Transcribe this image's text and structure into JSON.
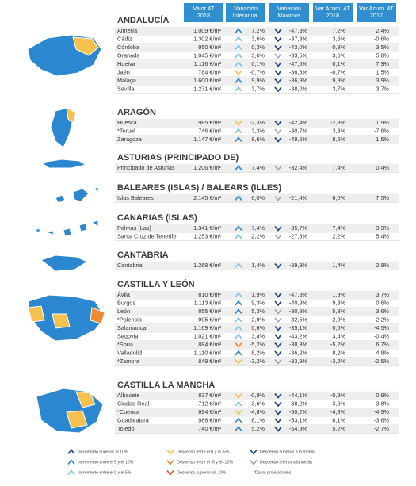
{
  "header": {
    "columns": [
      "Valor 4T 2018",
      "Variación Interanual",
      "Variación Máximos",
      "Var.Acum. 4T 2018",
      "Var.Acum. 4T 2017"
    ]
  },
  "sections": [
    {
      "title": "ANDALUCÍA",
      "rows": [
        [
          "Almería",
          "1.009 €/m²",
          "7,2%",
          "-47,3%",
          "7,2%",
          "2,4%"
        ],
        [
          "Cádiz",
          "1.302 €/m²",
          "3,6%",
          "-37,3%",
          "3,6%",
          "-0,6%"
        ],
        [
          "Córdoba",
          "950 €/m²",
          "0,3%",
          "-43,0%",
          "0,3%",
          "3,5%"
        ],
        [
          "Granada",
          "1.045 €/m²",
          "3,6%",
          "-33,5%",
          "3,6%",
          "5,8%"
        ],
        [
          "Huelva",
          "1.116 €/m²",
          "0,1%",
          "-47,5%",
          "0,1%",
          "7,9%"
        ],
        [
          "Jaén",
          "784 €/m²",
          "-0,7%",
          "-36,8%",
          "-0,7%",
          "1,5%"
        ],
        [
          "Málaga",
          "1.600 €/m²",
          "9,9%",
          "-36,9%",
          "9,9%",
          "3,9%"
        ],
        [
          "Sevilla",
          "1.271 €/m²",
          "3,7%",
          "-38,0%",
          "3,7%",
          "3,7%"
        ]
      ]
    },
    {
      "title": "ARAGÓN",
      "rows": [
        [
          "Huesca",
          "985 €/m²",
          "-2,3%",
          "-42,4%",
          "-2,3%",
          "1,9%"
        ],
        [
          "*Teruel",
          "746 €/m²",
          "3,3%",
          "-30,7%",
          "3,3%",
          "-7,6%"
        ],
        [
          "Zaragoza",
          "1.147 €/m²",
          "8,6%",
          "-49,5%",
          "8,6%",
          "1,5%"
        ]
      ]
    },
    {
      "title": "ASTURIAS (PRINCIPADO DE)",
      "rows": [
        [
          "Principado de Asturias",
          "1.206 €/m²",
          "7,4%",
          "-32,4%",
          "7,4%",
          "0,4%"
        ]
      ]
    },
    {
      "title": "BALEARES (ISLAS) / BALEARS (ILLES)",
      "rows": [
        [
          "Islas Baleares",
          "2.145 €/m²",
          "6,0%",
          "-21,4%",
          "6,0%",
          "7,5%"
        ]
      ]
    },
    {
      "title": "CANARIAS (ISLAS)",
      "rows": [
        [
          "Palmas (Las)",
          "1.341 €/m²",
          "7,4%",
          "-35,7%",
          "7,4%",
          "3,9%"
        ],
        [
          "Santa Cruz de Tenerife",
          "1.253 €/m²",
          "2,2%",
          "-27,8%",
          "2,2%",
          "5,4%"
        ]
      ]
    },
    {
      "title": "CANTABRIA",
      "rows": [
        [
          "Cantabria",
          "1.268 €/m²",
          "1,4%",
          "-39,3%",
          "1,4%",
          "2,8%"
        ]
      ]
    },
    {
      "title": "CASTILLA Y LEÓN",
      "rows": [
        [
          "Ávila",
          "810 €/m²",
          "1,9%",
          "-47,3%",
          "1,9%",
          "3,7%"
        ],
        [
          "Burgos",
          "1.113 €/m²",
          "9,3%",
          "-40,9%",
          "9,3%",
          "0,6%"
        ],
        [
          "León",
          "855 €/m²",
          "5,3%",
          "-30,8%",
          "5,3%",
          "3,6%"
        ],
        [
          "*Palencia",
          "995 €/m²",
          "2,9%",
          "-32,5%",
          "2,9%",
          "-2,2%"
        ],
        [
          "Salamanca",
          "1.169 €/m²",
          "0,6%",
          "-35,1%",
          "0,6%",
          "-4,5%"
        ],
        [
          "Segovia",
          "1.021 €/m²",
          "3,4%",
          "-43,2%",
          "3,4%",
          "-0,4%"
        ],
        [
          "*Soria",
          "884 €/m²",
          "-5,2%",
          "-38,3%",
          "-5,2%",
          "6,7%"
        ],
        [
          "Valladolid",
          "1.110 €/m²",
          "8,2%",
          "-36,2%",
          "8,2%",
          "4,8%"
        ],
        [
          "*Zamora",
          "849 €/m²",
          "-3,2%",
          "-33,9%",
          "-3,2%",
          "-2,5%"
        ]
      ]
    },
    {
      "title": "CASTILLA LA MANCHA",
      "rows": [
        [
          "Albacete",
          "837 €/m²",
          "-0,9%",
          "-44,1%",
          "-0,9%",
          "0,9%"
        ],
        [
          "Ciudad Real",
          "712 €/m²",
          "3,6%",
          "-38,2%",
          "3,6%",
          "-3,8%"
        ],
        [
          "*Cuenca",
          "694 €/m²",
          "-4,8%",
          "-50,2%",
          "-4,8%",
          "-4,9%"
        ],
        [
          "Guadalajara",
          "986 €/m²",
          "6,1%",
          "-53,1%",
          "6,1%",
          "-3,6%"
        ],
        [
          "Toledo",
          "740 €/m²",
          "5,2%",
          "-54,9%",
          "5,2%",
          "-2,7%"
        ]
      ]
    }
  ],
  "legend": [
    "Incremento superior al 10%",
    "Incremento entre el 5 y el 10%",
    "Incremento entre el 0 y el 5%",
    "Descenso entre el 0 y el -5%",
    "Descenso entre el -5 y el -10%",
    "Descenso superior al -10%",
    "Descenso superior a la media",
    "Descenso inferior a la media",
    "*Datos provisionales"
  ]
}
